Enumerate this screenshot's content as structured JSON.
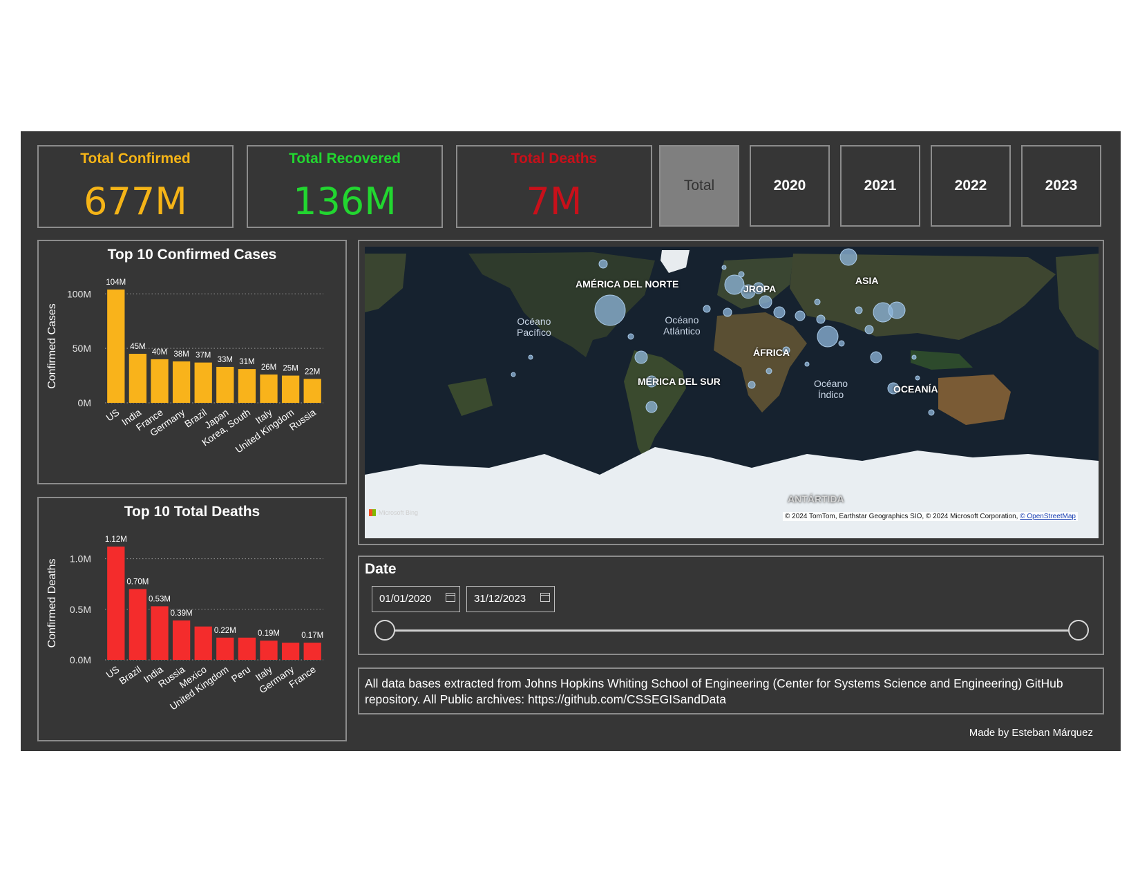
{
  "kpis": [
    {
      "title": "Total Confirmed",
      "value": "677M",
      "color": "#f5b417"
    },
    {
      "title": "Total Recovered",
      "value": "136M",
      "color": "#22d630"
    },
    {
      "title": "Total Deaths",
      "value": "7M",
      "color": "#c8101a"
    }
  ],
  "years": [
    "Total",
    "2020",
    "2021",
    "2022",
    "2023"
  ],
  "selected_year": "Total",
  "confirmed_chart": {
    "title": "Top 10 Confirmed Cases",
    "ylabel": "Confirmed Cases"
  },
  "deaths_chart": {
    "title": "Top 10 Total Deaths",
    "ylabel": "Confirmed Deaths"
  },
  "chart_data": [
    {
      "type": "bar",
      "title": "Top 10 Confirmed Cases",
      "ylabel": "Confirmed Cases",
      "categories": [
        "US",
        "India",
        "France",
        "Germany",
        "Brazil",
        "Japan",
        "Korea, South",
        "Italy",
        "United Kingdom",
        "Russia"
      ],
      "values": [
        104,
        45,
        40,
        38,
        37,
        33,
        31,
        26,
        25,
        22
      ],
      "data_labels": [
        "104M",
        "45M",
        "40M",
        "38M",
        "37M",
        "33M",
        "31M",
        "26M",
        "25M",
        "22M"
      ],
      "yticks": [
        0,
        50,
        100
      ],
      "ytick_labels": [
        "0M",
        "50M",
        "100M"
      ],
      "ylim": [
        0,
        104
      ],
      "color": "#f9b31b",
      "grid": true
    },
    {
      "type": "bar",
      "title": "Top 10 Total Deaths",
      "ylabel": "Confirmed Deaths",
      "categories": [
        "US",
        "Brazil",
        "India",
        "Russia",
        "Mexico",
        "United Kingdom",
        "Peru",
        "Italy",
        "Germany",
        "France"
      ],
      "values": [
        1.12,
        0.7,
        0.53,
        0.39,
        0.33,
        0.22,
        0.22,
        0.19,
        0.17,
        0.17
      ],
      "data_labels": [
        "1.12M",
        "0.70M",
        "0.53M",
        "0.39M",
        "",
        "0.22M",
        "",
        "0.19M",
        "",
        "0.17M"
      ],
      "yticks": [
        0,
        0.5,
        1.0
      ],
      "ytick_labels": [
        "0.0M",
        "0.5M",
        "1.0M"
      ],
      "ylim": [
        0,
        1.12
      ],
      "color": "#f42c2c",
      "grid": true
    }
  ],
  "map": {
    "labels": {
      "north_america": "AMÉRICA DEL NORTE",
      "europe": "JROPA",
      "asia": "ASIA",
      "africa": "ÁFRICA",
      "south_america": "MÉRICA DEL SUR",
      "oceania": "OCEANÍA",
      "antarctica": "ANTÁRTIDA"
    },
    "oceans": {
      "pacific": [
        "Océano",
        "Pacífico"
      ],
      "atlantic": [
        "Océano",
        "Atlántico"
      ],
      "indian": [
        "Océano",
        "Índico"
      ]
    },
    "attribution": "© 2024 TomTom, Earthstar Geographics SIO, © 2024 Microsoft Corporation,",
    "attribution_link": "© OpenStreetMap",
    "provider": "Microsoft Bing",
    "colors": {
      "bubble": "#8fb7dc"
    }
  },
  "date_filter": {
    "title": "Date",
    "start": "01/01/2020",
    "end": "31/12/2023"
  },
  "footnote": "All data bases extracted from Johns Hopkins Whiting School of Engineering (Center for Systems Science and Engineering) GitHub repository. All Public archives: https://github.com/CSSEGISandData",
  "credit": "Made by Esteban Márquez"
}
